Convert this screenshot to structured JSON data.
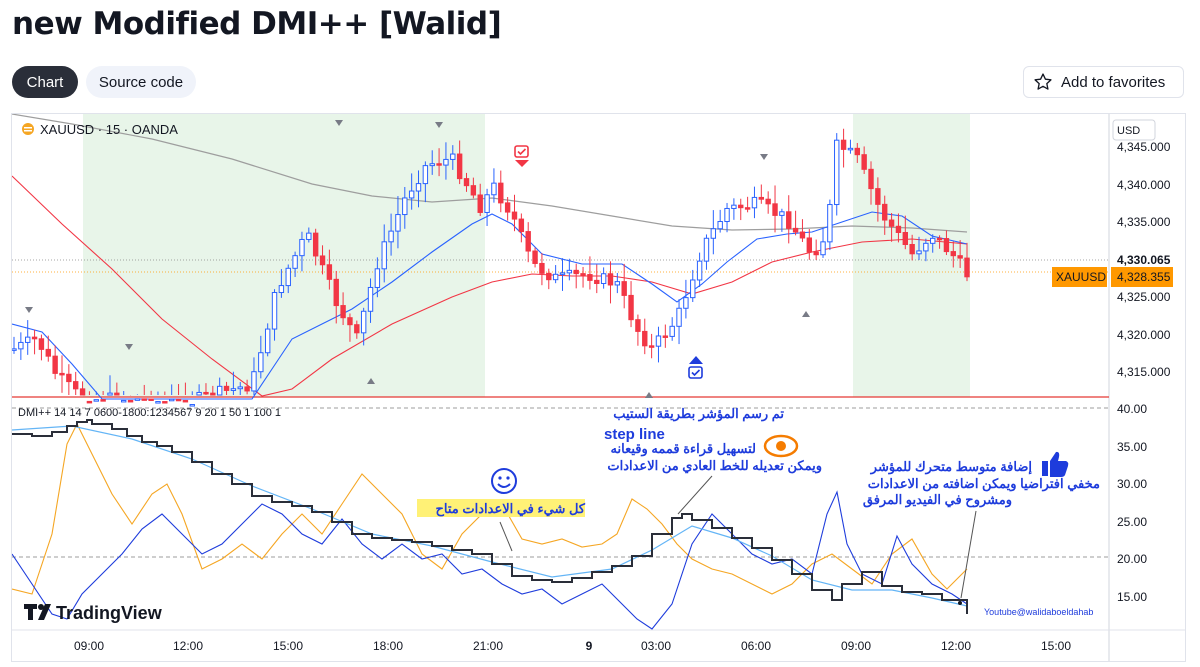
{
  "page": {
    "title": "new Modified DMI++ [Walid]"
  },
  "tabs": [
    {
      "label": "Chart"
    },
    {
      "label": "Source code"
    }
  ],
  "favorites": {
    "label": "Add to favorites"
  },
  "chart": {
    "symbol_label": "XAUUSD · 15 · OANDA",
    "currency": "USD",
    "price_tag_label": "XAUUSD",
    "price_current": "4,328.355",
    "price_line": "4,330.065",
    "price_ticks": [
      "4,345.000",
      "4,340.000",
      "4,335.000",
      "4,325.000",
      "4,320.000",
      "4,315.000"
    ],
    "time_ticks": [
      "09:00",
      "12:00",
      "15:00",
      "18:00",
      "21:00",
      "9",
      "03:00",
      "06:00",
      "09:00",
      "12:00",
      "15:00"
    ],
    "indicator_label": "DMI++ 14 14 7 0600-1800:1234567 9 20 1 50 1 100 1",
    "indicator_ticks": [
      "40.00",
      "35.00",
      "30.00",
      "25.00",
      "20.00",
      "15.00"
    ],
    "watermark": "TradingView",
    "youtube_credit": "Youtube@walidaboeldahab",
    "colors": {
      "bull": "#2962ff",
      "bear": "#f23645",
      "session_bg": "#e8f5e9",
      "adx": "#2a2e39",
      "di_plus": "#1e3cdc",
      "di_minus": "#f5a623",
      "price_tag": "#ff9800"
    }
  },
  "annotations": {
    "step_line": {
      "line1": "تم رسم المؤشر بطريقة الستيب",
      "line2": "step line",
      "line3": "لتسهيل قراءة قممه وقيعانه",
      "line4": "ويمكن تعديله للخط العادي من الاعدادات"
    },
    "settings": "كل شيء في الاعدادات متاح",
    "moving_average": {
      "line1": "إضافة متوسط متحرك للمؤشر",
      "line2": "مخفي افتراضيا ويمكن اضافته من الاعدادات",
      "line3": "ومشروح في الفيديو المرفق"
    }
  }
}
